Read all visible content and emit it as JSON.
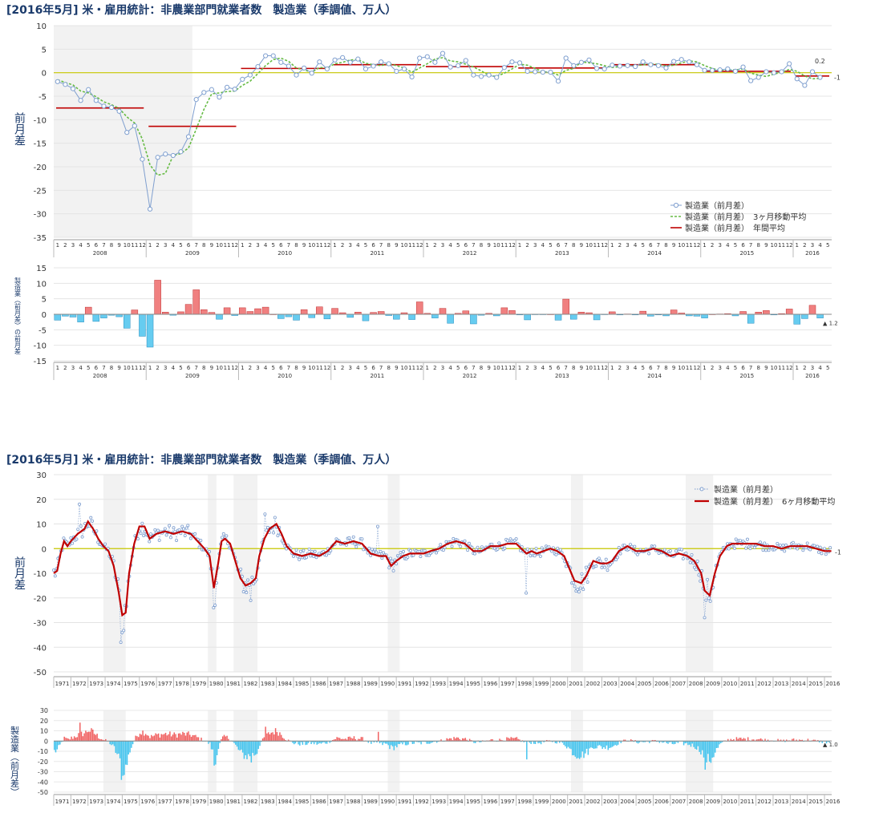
{
  "chart_data": [
    {
      "id": "top-line",
      "type": "line",
      "title": "[2016年5月] 米・雇用統計：非農業部門就業者数　製造業（季調値、万人）",
      "ylabel": "前月差",
      "ylim": [
        -35,
        10
      ],
      "y_ticks": [
        "10",
        "5",
        "0",
        "-5",
        "-10",
        "-15",
        "-20",
        "-25",
        "-30",
        "-35"
      ],
      "years": [
        "2008",
        "2009",
        "2010",
        "2011",
        "2012",
        "2013",
        "2014",
        "2015",
        "2016"
      ],
      "recession_months": "2008-1 to 2009-6",
      "legend": [
        "製造業（前月差）",
        "製造業（前月差）　3ヶ月移動平均",
        "製造業（前月差）　年間平均"
      ],
      "annotations": [
        "0.2",
        "-1"
      ],
      "series_monthly": [
        -1.9,
        -2.5,
        -3.4,
        -5.9,
        -3.6,
        -5.9,
        -7.1,
        -7.4,
        -8.2,
        -12.7,
        -11.3,
        -18.4,
        -29.0,
        -18.0,
        -17.3,
        -17.6,
        -16.8,
        -13.6,
        -5.7,
        -4.2,
        -3.6,
        -5.2,
        -3.1,
        -3.5,
        -1.4,
        -0.5,
        1.3,
        3.6,
        3.6,
        2.2,
        1.4,
        -0.5,
        1.0,
        -0.1,
        2.3,
        0.8,
        2.7,
        3.2,
        2.2,
        2.9,
        0.8,
        1.4,
        2.3,
        1.9,
        0.3,
        0.8,
        -0.9,
        3.1,
        3.4,
        2.2,
        4.1,
        1.2,
        1.5,
        2.6,
        -0.5,
        -0.8,
        -0.5,
        -1.0,
        1.1,
        2.3,
        2.1,
        0.3,
        0.2,
        0.1,
        0.1,
        -1.8,
        3.1,
        1.5,
        2.2,
        2.7,
        0.9,
        0.8,
        1.6,
        1.4,
        1.5,
        1.3,
        2.3,
        1.7,
        1.5,
        1.0,
        2.4,
        2.8,
        2.3,
        1.7,
        0.5,
        0.5,
        0.6,
        0.8,
        0.3,
        1.2,
        -1.7,
        -1.0,
        0.2,
        0.0,
        0.2,
        1.9,
        -1.3,
        -2.7,
        0.2,
        -1.0
      ],
      "series_ma3": [
        -1.5,
        -2.1,
        -2.6,
        -3.9,
        -4.3,
        -5.1,
        -6.2,
        -6.8,
        -7.6,
        -9.4,
        -10.7,
        -14.1,
        -19.6,
        -21.8,
        -21.4,
        -17.6,
        -17.2,
        -16.0,
        -12.0,
        -7.8,
        -4.5,
        -4.3,
        -4.0,
        -3.9,
        -2.7,
        -1.8,
        -0.2,
        1.5,
        2.8,
        3.1,
        2.4,
        1.0,
        0.6,
        0.1,
        1.1,
        1.0,
        1.9,
        2.2,
        2.7,
        2.8,
        2.0,
        1.7,
        1.5,
        1.9,
        1.5,
        1.0,
        0.1,
        1.0,
        1.9,
        2.9,
        3.2,
        2.5,
        2.3,
        1.8,
        1.2,
        0.4,
        -0.6,
        -0.8,
        -0.1,
        0.8,
        1.8,
        1.6,
        0.9,
        0.2,
        0.1,
        -0.5,
        0.5,
        0.9,
        2.3,
        2.1,
        1.9,
        1.5,
        1.1,
        1.3,
        1.5,
        1.4,
        1.7,
        1.8,
        1.8,
        1.4,
        1.6,
        2.1,
        2.5,
        2.3,
        1.5,
        0.9,
        0.5,
        0.6,
        0.6,
        0.8,
        -0.1,
        -0.5,
        -0.8,
        -0.3,
        0.1,
        0.7,
        0.3,
        -0.7,
        -1.3,
        -1.2
      ],
      "annual_avg": [
        -7.5,
        -11.4,
        0.9,
        1.7,
        1.3,
        1.0,
        1.7,
        0.3,
        -0.7
      ]
    },
    {
      "id": "top-bar",
      "type": "bar",
      "ylabel": "製造業（前月差）の前月差",
      "ylim": [
        -15,
        15
      ],
      "y_ticks": [
        "15",
        "10",
        "5",
        "0",
        "-5",
        "-10",
        "-15"
      ],
      "years": [
        "2008",
        "2009",
        "2010",
        "2011",
        "2012",
        "2013",
        "2014",
        "2015",
        "2016"
      ],
      "last_label": "▲ 1.2"
    },
    {
      "id": "bottom-line",
      "type": "line",
      "title": "[2016年5月] 米・雇用統計：非農業部門就業者数　製造業（季調値、万人）",
      "ylabel": "前月差",
      "ylim": [
        -50,
        30
      ],
      "y_ticks": [
        "30",
        "20",
        "10",
        "0",
        "-10",
        "-20",
        "-30",
        "-40",
        "-50"
      ],
      "years": [
        "1971",
        "1972",
        "1973",
        "1974",
        "1975",
        "1976",
        "1977",
        "1978",
        "1979",
        "1980",
        "1981",
        "1982",
        "1983",
        "1984",
        "1985",
        "1986",
        "1987",
        "1988",
        "1989",
        "1990",
        "1991",
        "1992",
        "1993",
        "1994",
        "1995",
        "1996",
        "1997",
        "1998",
        "1999",
        "2000",
        "2001",
        "2002",
        "2003",
        "2004",
        "2005",
        "2006",
        "2007",
        "2008",
        "2009",
        "2010",
        "2011",
        "2012",
        "2013",
        "2014",
        "2015",
        "2016"
      ],
      "legend": [
        "製造業（前月差）",
        "製造業（前月差）　6ヶ月移動平均"
      ],
      "annotations": [
        "-1"
      ],
      "recessions": [
        [
          1973.9,
          1975.2
        ],
        [
          1980.0,
          1980.5
        ],
        [
          1981.5,
          1982.9
        ],
        [
          1990.5,
          1991.2
        ],
        [
          2001.2,
          2001.9
        ],
        [
          2007.9,
          2009.5
        ]
      ],
      "ma_key": [
        [
          1971.0,
          -10
        ],
        [
          1971.2,
          -9
        ],
        [
          1971.4,
          -2
        ],
        [
          1971.6,
          3
        ],
        [
          1971.8,
          1
        ],
        [
          1972.0,
          3
        ],
        [
          1972.4,
          6
        ],
        [
          1972.8,
          8
        ],
        [
          1973.0,
          11
        ],
        [
          1973.3,
          8
        ],
        [
          1973.6,
          4
        ],
        [
          1973.9,
          1
        ],
        [
          1974.2,
          -1
        ],
        [
          1974.5,
          -7
        ],
        [
          1974.8,
          -18
        ],
        [
          1975.0,
          -27
        ],
        [
          1975.2,
          -26
        ],
        [
          1975.4,
          -10
        ],
        [
          1975.7,
          2
        ],
        [
          1976.0,
          9
        ],
        [
          1976.3,
          9
        ],
        [
          1976.6,
          4
        ],
        [
          1977.0,
          6
        ],
        [
          1977.5,
          7
        ],
        [
          1978.0,
          6
        ],
        [
          1978.5,
          7
        ],
        [
          1979.0,
          6
        ],
        [
          1979.4,
          3
        ],
        [
          1979.8,
          0
        ],
        [
          1980.1,
          -3
        ],
        [
          1980.35,
          -16
        ],
        [
          1980.6,
          -6
        ],
        [
          1980.8,
          3
        ],
        [
          1981.0,
          4
        ],
        [
          1981.3,
          2
        ],
        [
          1981.6,
          -5
        ],
        [
          1981.9,
          -12
        ],
        [
          1982.2,
          -15
        ],
        [
          1982.5,
          -14
        ],
        [
          1982.8,
          -12
        ],
        [
          1983.0,
          -3
        ],
        [
          1983.3,
          4
        ],
        [
          1983.6,
          8
        ],
        [
          1984.0,
          10
        ],
        [
          1984.3,
          6
        ],
        [
          1984.6,
          1
        ],
        [
          1985.0,
          -2
        ],
        [
          1985.5,
          -3
        ],
        [
          1986.0,
          -2
        ],
        [
          1986.5,
          -3
        ],
        [
          1987.0,
          -1
        ],
        [
          1987.5,
          3
        ],
        [
          1988.0,
          2
        ],
        [
          1988.5,
          3
        ],
        [
          1989.0,
          2
        ],
        [
          1989.5,
          -2
        ],
        [
          1990.0,
          -3
        ],
        [
          1990.4,
          -3
        ],
        [
          1990.7,
          -7
        ],
        [
          1991.0,
          -5
        ],
        [
          1991.4,
          -3
        ],
        [
          1991.8,
          -2
        ],
        [
          1992.2,
          -2
        ],
        [
          1992.6,
          -2
        ],
        [
          1993.0,
          -1
        ],
        [
          1993.5,
          0
        ],
        [
          1994.0,
          2
        ],
        [
          1994.5,
          3
        ],
        [
          1995.0,
          2
        ],
        [
          1995.5,
          -1
        ],
        [
          1996.0,
          -1
        ],
        [
          1996.5,
          1
        ],
        [
          1997.0,
          1
        ],
        [
          1997.5,
          2
        ],
        [
          1998.0,
          2
        ],
        [
          1998.3,
          0
        ],
        [
          1998.6,
          -2
        ],
        [
          1998.9,
          -1
        ],
        [
          1999.2,
          -2
        ],
        [
          1999.6,
          -1
        ],
        [
          2000.0,
          0
        ],
        [
          2000.4,
          -1
        ],
        [
          2000.8,
          -3
        ],
        [
          2001.1,
          -8
        ],
        [
          2001.4,
          -13
        ],
        [
          2001.8,
          -14
        ],
        [
          2002.1,
          -11
        ],
        [
          2002.5,
          -5
        ],
        [
          2002.9,
          -6
        ],
        [
          2003.3,
          -6
        ],
        [
          2003.6,
          -5
        ],
        [
          2004.0,
          -1
        ],
        [
          2004.5,
          1
        ],
        [
          2005.0,
          -1
        ],
        [
          2005.5,
          -1
        ],
        [
          2006.0,
          0
        ],
        [
          2006.5,
          -1
        ],
        [
          2007.0,
          -3
        ],
        [
          2007.5,
          -2
        ],
        [
          2008.0,
          -3
        ],
        [
          2008.4,
          -5
        ],
        [
          2008.8,
          -10
        ],
        [
          2009.0,
          -17
        ],
        [
          2009.3,
          -19
        ],
        [
          2009.6,
          -10
        ],
        [
          2009.9,
          -3
        ],
        [
          2010.3,
          1
        ],
        [
          2010.6,
          2
        ],
        [
          2011.0,
          2
        ],
        [
          2011.5,
          2
        ],
        [
          2012.0,
          2
        ],
        [
          2012.5,
          1
        ],
        [
          2013.0,
          1
        ],
        [
          2013.5,
          0
        ],
        [
          2014.0,
          1
        ],
        [
          2014.5,
          1
        ],
        [
          2015.0,
          1
        ],
        [
          2015.5,
          0
        ],
        [
          2016.0,
          -1
        ],
        [
          2016.4,
          -1
        ]
      ]
    },
    {
      "id": "bottom-bar",
      "type": "bar",
      "ylabel": "製造業（前月差）",
      "ylim": [
        -50,
        30
      ],
      "y_ticks": [
        "30",
        "20",
        "10",
        "0",
        "-10",
        "-20",
        "-30",
        "-40",
        "-50"
      ],
      "years": [
        "1971",
        "1972",
        "1973",
        "1974",
        "1975",
        "1976",
        "1977",
        "1978",
        "1979",
        "1980",
        "1981",
        "1982",
        "1983",
        "1984",
        "1985",
        "1986",
        "1987",
        "1988",
        "1989",
        "1990",
        "1991",
        "1992",
        "1993",
        "1994",
        "1995",
        "1996",
        "1997",
        "1998",
        "1999",
        "2000",
        "2001",
        "2002",
        "2003",
        "2004",
        "2005",
        "2006",
        "2007",
        "2008",
        "2009",
        "2010",
        "2011",
        "2012",
        "2013",
        "2014",
        "2015",
        "2016"
      ],
      "last_label": "▲ 1.0"
    }
  ],
  "colors": {
    "pos_bar": "#f08080",
    "neg_bar": "#66ccf0",
    "line": "#7f9fcf",
    "ma": "#c00000",
    "ma3": "#66bb44",
    "annual": "#c00000",
    "zero": "#c8c800",
    "shade": "#f2f2f2"
  }
}
